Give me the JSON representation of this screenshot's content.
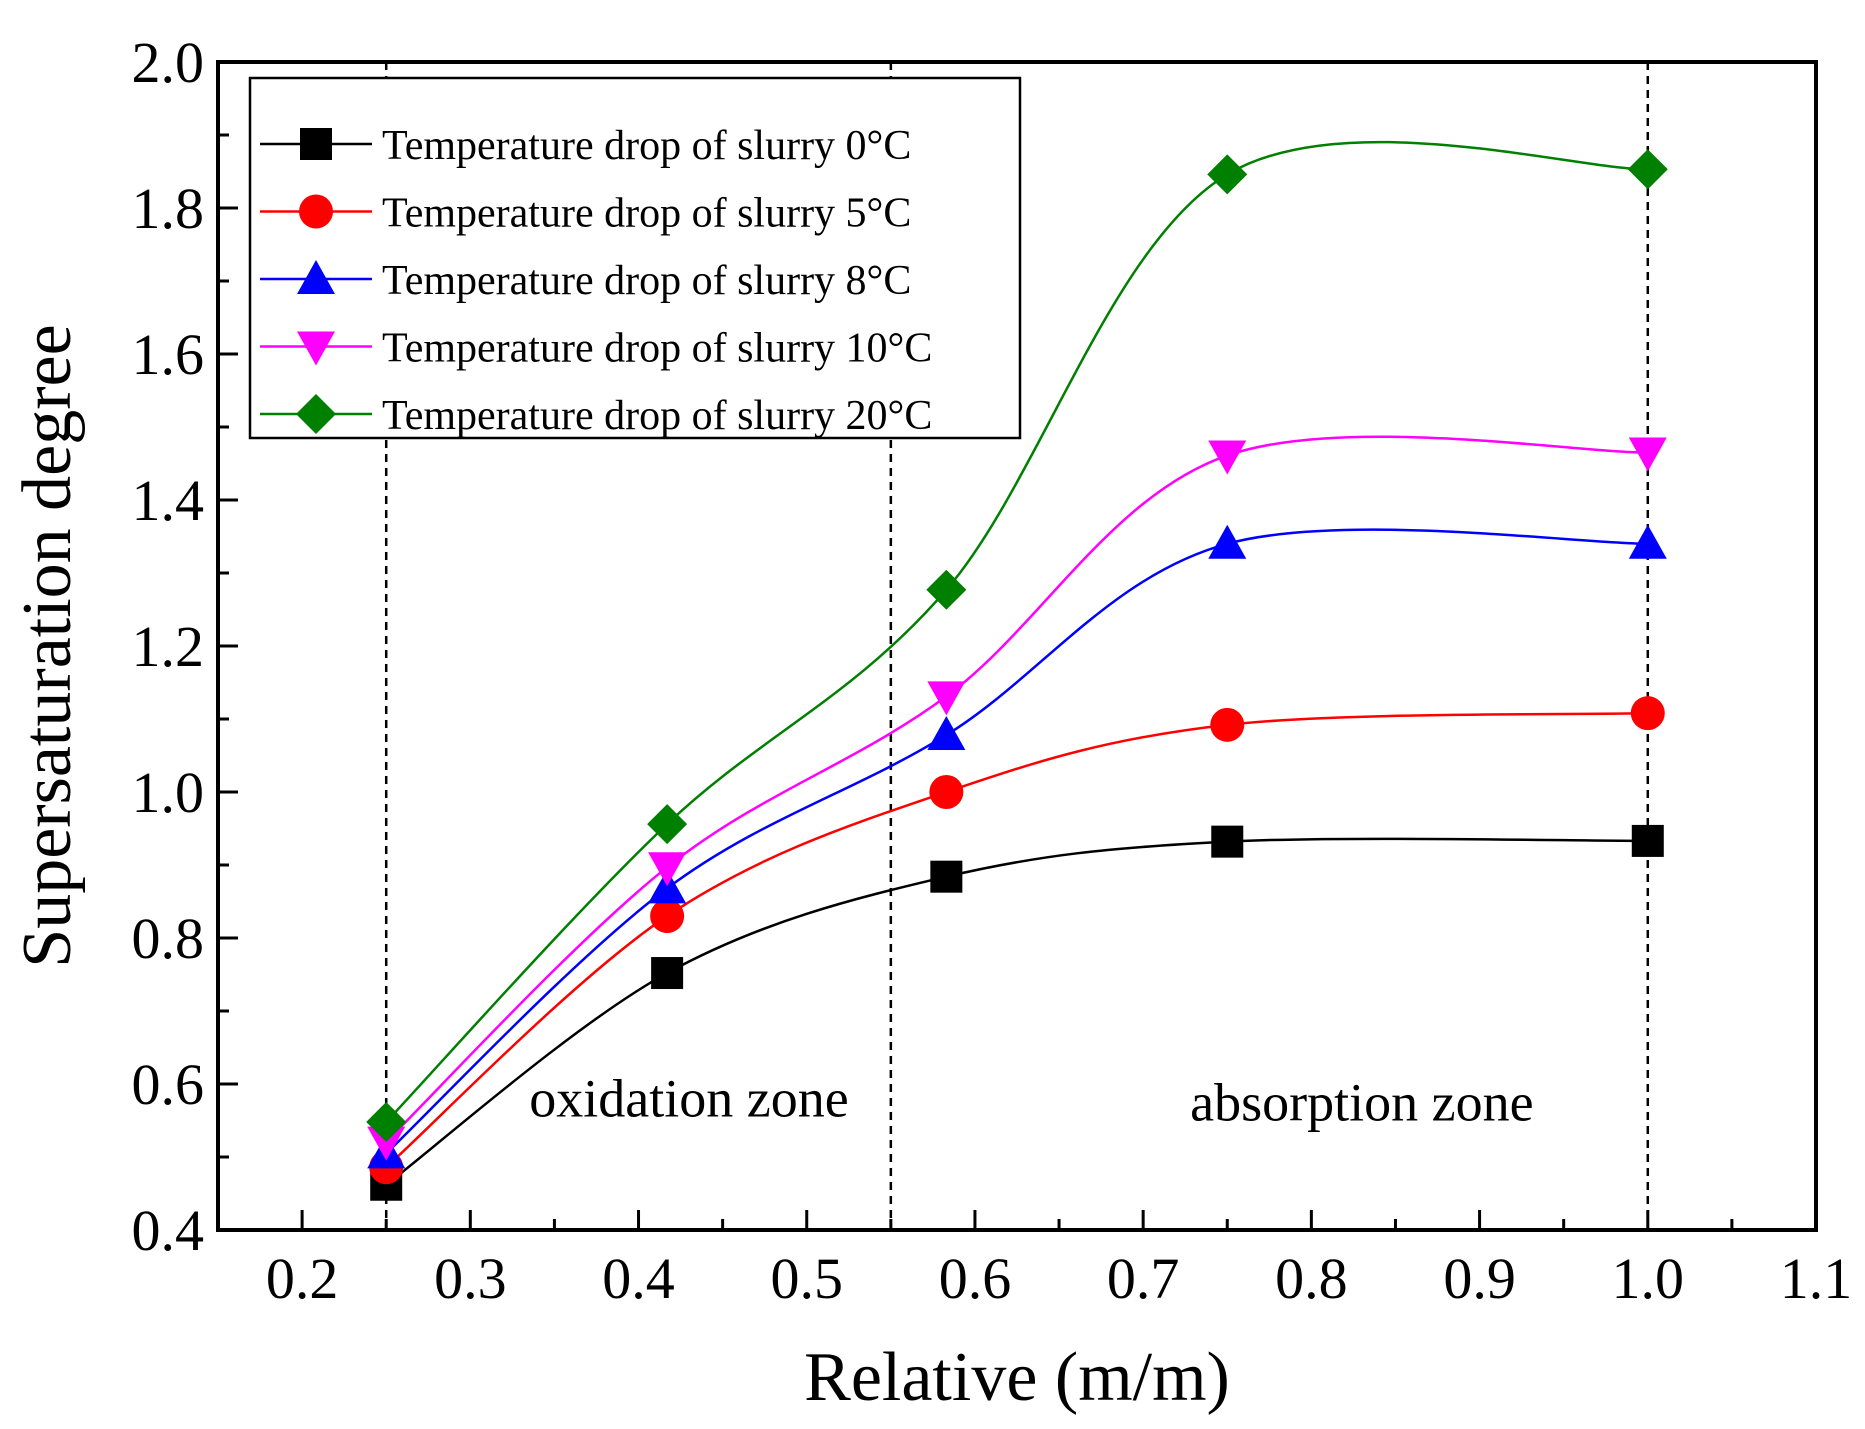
{
  "chart_data": {
    "type": "line",
    "title": "",
    "xlabel": "Relative (m/m)",
    "ylabel": "Supersaturation degree",
    "xlim": [
      0.15,
      1.1
    ],
    "ylim": [
      0.4,
      2.0
    ],
    "xticks": [
      0.2,
      0.3,
      0.4,
      0.5,
      0.6,
      0.7,
      0.8,
      0.9,
      1.0,
      1.1
    ],
    "xtick_labels": [
      "0.2",
      "0.3",
      "0.4",
      "0.5",
      "0.6",
      "0.7",
      "0.8",
      "0.9",
      "1.0",
      "1.1"
    ],
    "yticks": [
      0.4,
      0.6,
      0.8,
      1.0,
      1.2,
      1.4,
      1.6,
      1.8,
      2.0
    ],
    "ytick_labels": [
      "0.4",
      "0.6",
      "0.8",
      "1.0",
      "1.2",
      "1.4",
      "1.6",
      "1.8",
      "2.0"
    ],
    "grid": false,
    "legend_position": "top-left",
    "x": [
      0.25,
      0.417,
      0.583,
      0.75,
      1.0
    ],
    "series": [
      {
        "name": "Temperature drop of slurry 0°C",
        "marker": "square",
        "color": "#000000",
        "values": [
          0.462,
          0.752,
          0.884,
          0.932,
          0.933
        ]
      },
      {
        "name": "Temperature drop of slurry 5°C",
        "marker": "circle",
        "color": "#ff0000",
        "values": [
          0.486,
          0.83,
          1.0,
          1.092,
          1.108
        ]
      },
      {
        "name": "Temperature drop of slurry 8°C",
        "marker": "triangle-up",
        "color": "#0000ff",
        "values": [
          0.505,
          0.868,
          1.078,
          1.34,
          1.34
        ]
      },
      {
        "name": "Temperature drop of slurry 10°C",
        "marker": "triangle-down",
        "color": "#ff00ff",
        "values": [
          0.521,
          0.897,
          1.131,
          1.461,
          1.465
        ]
      },
      {
        "name": "Temperature drop of slurry 20°C",
        "marker": "diamond",
        "color": "#008000",
        "values": [
          0.548,
          0.956,
          1.277,
          1.846,
          1.853
        ]
      }
    ],
    "reference_lines_x": [
      0.25,
      0.55,
      1.0
    ],
    "annotations": [
      {
        "text": "oxidation zone",
        "x": 0.43,
        "y": 0.58
      },
      {
        "text": "absorption zone",
        "x": 0.83,
        "y": 0.575
      }
    ]
  }
}
